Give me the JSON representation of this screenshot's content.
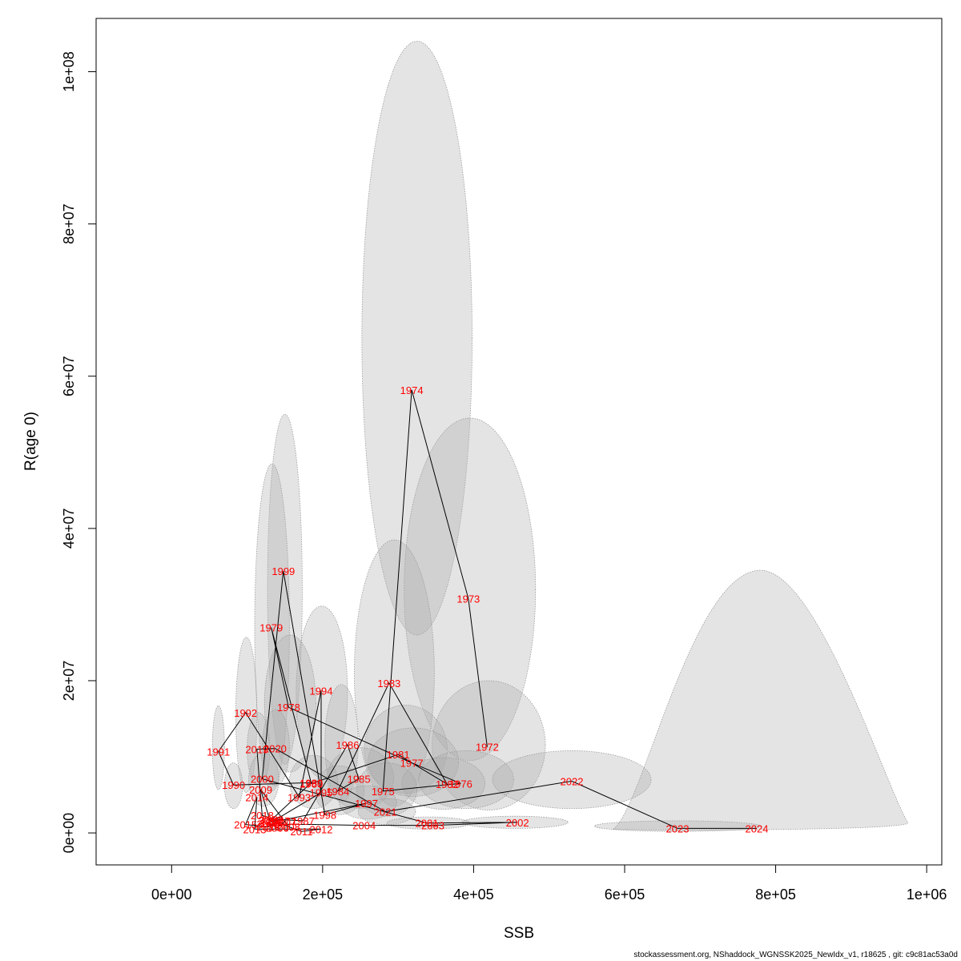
{
  "chart_data": {
    "type": "scatter",
    "xlabel": "SSB",
    "ylabel": "R(age 0)",
    "xlim": [
      -100000,
      1020000
    ],
    "ylim": [
      -4200000,
      107000000
    ],
    "x_ticks": [
      {
        "value": 0,
        "label": "0e+00"
      },
      {
        "value": 200000,
        "label": "2e+05"
      },
      {
        "value": 400000,
        "label": "4e+05"
      },
      {
        "value": 600000,
        "label": "6e+05"
      },
      {
        "value": 800000,
        "label": "8e+05"
      },
      {
        "value": 1000000,
        "label": "1e+06"
      }
    ],
    "y_ticks": [
      {
        "value": 0,
        "label": "0e+00"
      },
      {
        "value": 20000000,
        "label": "2e+07"
      },
      {
        "value": 40000000,
        "label": "4e+07"
      },
      {
        "value": 60000000,
        "label": "6e+07"
      },
      {
        "value": 80000000,
        "label": "8e+07"
      },
      {
        "value": 100000000,
        "label": "1e+08"
      }
    ],
    "points": [
      {
        "year": "1972",
        "ssb": 418000,
        "r": 11300000
      },
      {
        "year": "1973",
        "ssb": 393000,
        "r": 30800000
      },
      {
        "year": "1974",
        "ssb": 318000,
        "r": 58200000
      },
      {
        "year": "1975",
        "ssb": 280000,
        "r": 5500000
      },
      {
        "year": "1976",
        "ssb": 383000,
        "r": 6500000
      },
      {
        "year": "1977",
        "ssb": 318000,
        "r": 9200000
      },
      {
        "year": "1978",
        "ssb": 155000,
        "r": 16500000
      },
      {
        "year": "1979",
        "ssb": 132000,
        "r": 27000000
      },
      {
        "year": "1980",
        "ssb": 185000,
        "r": 6500000
      },
      {
        "year": "1981",
        "ssb": 300000,
        "r": 10300000
      },
      {
        "year": "1982",
        "ssb": 365000,
        "r": 6400000
      },
      {
        "year": "1983",
        "ssb": 288000,
        "r": 19700000
      },
      {
        "year": "1984",
        "ssb": 220000,
        "r": 5500000
      },
      {
        "year": "1985",
        "ssb": 248000,
        "r": 7100000
      },
      {
        "year": "1986",
        "ssb": 233000,
        "r": 11600000
      },
      {
        "year": "1987",
        "ssb": 174000,
        "r": 1600000
      },
      {
        "year": "1988",
        "ssb": 133000,
        "r": 1800000
      },
      {
        "year": "1989",
        "ssb": 185000,
        "r": 6600000
      },
      {
        "year": "1990",
        "ssb": 82000,
        "r": 6300000
      },
      {
        "year": "1991",
        "ssb": 62000,
        "r": 10700000
      },
      {
        "year": "1992",
        "ssb": 98000,
        "r": 15800000
      },
      {
        "year": "1993",
        "ssb": 169000,
        "r": 4700000
      },
      {
        "year": "1994",
        "ssb": 198000,
        "r": 18700000
      },
      {
        "year": "1995",
        "ssb": 198000,
        "r": 5300000
      },
      {
        "year": "1996",
        "ssb": 132000,
        "r": 1400000
      },
      {
        "year": "1997",
        "ssb": 258000,
        "r": 3900000
      },
      {
        "year": "1998",
        "ssb": 203000,
        "r": 2400000
      },
      {
        "year": "1999",
        "ssb": 148000,
        "r": 34400000
      },
      {
        "year": "2000",
        "ssb": 120000,
        "r": 7100000
      },
      {
        "year": "2001",
        "ssb": 338000,
        "r": 1300000
      },
      {
        "year": "2002",
        "ssb": 458000,
        "r": 1400000
      },
      {
        "year": "2003",
        "ssb": 346000,
        "r": 1000000
      },
      {
        "year": "2004",
        "ssb": 255000,
        "r": 1000000
      },
      {
        "year": "2005",
        "ssb": 128000,
        "r": 1200000
      },
      {
        "year": "2006",
        "ssb": 140000,
        "r": 700000
      },
      {
        "year": "2007",
        "ssb": 150000,
        "r": 1500000
      },
      {
        "year": "2008",
        "ssb": 155000,
        "r": 800000
      },
      {
        "year": "2009",
        "ssb": 118000,
        "r": 5700000
      },
      {
        "year": "2010",
        "ssb": 130000,
        "r": 1700000
      },
      {
        "year": "2011",
        "ssb": 172000,
        "r": 200000
      },
      {
        "year": "2012",
        "ssb": 198000,
        "r": 500000
      },
      {
        "year": "2013",
        "ssb": 110000,
        "r": 500000
      },
      {
        "year": "2014",
        "ssb": 113000,
        "r": 4700000
      },
      {
        "year": "2015",
        "ssb": 98000,
        "r": 1100000
      },
      {
        "year": "2016",
        "ssb": 128000,
        "r": 800000
      },
      {
        "year": "2017",
        "ssb": 142000,
        "r": 1600000
      },
      {
        "year": "2018",
        "ssb": 120000,
        "r": 2300000
      },
      {
        "year": "2019",
        "ssb": 113000,
        "r": 11000000
      },
      {
        "year": "2020",
        "ssb": 137000,
        "r": 11100000
      },
      {
        "year": "2021",
        "ssb": 283000,
        "r": 2800000
      },
      {
        "year": "2022",
        "ssb": 530000,
        "r": 6800000
      },
      {
        "year": "2023",
        "ssb": 670000,
        "r": 600000
      },
      {
        "year": "2024",
        "ssb": 775000,
        "r": 600000
      }
    ],
    "confidence_regions": [
      {
        "year": "1974",
        "x_center": 325000,
        "y_center": 65000000,
        "x_halfwidth": 73000,
        "y_halfheight": 39000000
      },
      {
        "year": "1973",
        "x_center": 395000,
        "y_center": 32000000,
        "x_halfwidth": 87000,
        "y_halfheight": 22500000
      },
      {
        "year": "1983",
        "x_center": 295000,
        "y_center": 21000000,
        "x_halfwidth": 53000,
        "y_halfheight": 17500000
      },
      {
        "year": "1972",
        "x_center": 420000,
        "y_center": 11500000,
        "x_halfwidth": 75000,
        "y_halfheight": 8500000
      },
      {
        "year": "1999",
        "x_center": 150000,
        "y_center": 32000000,
        "x_halfwidth": 23000,
        "y_halfheight": 23000000
      },
      {
        "year": "1979",
        "x_center": 133000,
        "y_center": 27000000,
        "x_halfwidth": 23000,
        "y_halfheight": 21500000
      },
      {
        "year": "1994",
        "x_center": 199000,
        "y_center": 18500000,
        "x_halfwidth": 34000,
        "y_halfheight": 11300000
      },
      {
        "year": "1978",
        "x_center": 157000,
        "y_center": 17000000,
        "x_halfwidth": 34000,
        "y_halfheight": 9000000
      },
      {
        "year": "1992",
        "x_center": 99000,
        "y_center": 15500000,
        "x_halfwidth": 14000,
        "y_halfheight": 10200000
      },
      {
        "year": "1991",
        "x_center": 62000,
        "y_center": 11200000,
        "x_halfwidth": 8000,
        "y_halfheight": 5500000
      },
      {
        "year": "1986",
        "x_center": 225000,
        "y_center": 11800000,
        "x_halfwidth": 22000,
        "y_halfheight": 7700000
      },
      {
        "year": "1981",
        "x_center": 310000,
        "y_center": 11000000,
        "x_halfwidth": 55000,
        "y_halfheight": 5800000
      },
      {
        "year": "1977",
        "x_center": 320000,
        "y_center": 9300000,
        "x_halfwidth": 60000,
        "y_halfheight": 4500000
      },
      {
        "year": "1976",
        "x_center": 390000,
        "y_center": 7000000,
        "x_halfwidth": 63000,
        "y_halfheight": 3800000
      },
      {
        "year": "2022",
        "x_center": 530000,
        "y_center": 7000000,
        "x_halfwidth": 105000,
        "y_halfheight": 3800000
      },
      {
        "year": "1982",
        "x_center": 360000,
        "y_center": 6500000,
        "x_halfwidth": 55000,
        "y_halfheight": 3400000
      },
      {
        "year": "1985",
        "x_center": 250000,
        "y_center": 7200000,
        "x_halfwidth": 44000,
        "y_halfheight": 4000000
      },
      {
        "year": "1975",
        "x_center": 285000,
        "y_center": 5700000,
        "x_halfwidth": 40000,
        "y_halfheight": 3500000
      },
      {
        "year": "1984",
        "x_center": 222000,
        "y_center": 5600000,
        "x_halfwidth": 33000,
        "y_halfheight": 3200000
      },
      {
        "year": "1980",
        "x_center": 188000,
        "y_center": 6700000,
        "x_halfwidth": 32000,
        "y_halfheight": 3500000
      },
      {
        "year": "2020",
        "x_center": 138000,
        "y_center": 11200000,
        "x_halfwidth": 18000,
        "y_halfheight": 5000000
      },
      {
        "year": "2019",
        "x_center": 115000,
        "y_center": 11000000,
        "x_halfwidth": 15000,
        "y_halfheight": 4800000
      },
      {
        "year": "1990",
        "x_center": 82000,
        "y_center": 6200000,
        "x_halfwidth": 12000,
        "y_halfheight": 3000000
      },
      {
        "year": "2000",
        "x_center": 122000,
        "y_center": 7000000,
        "x_halfwidth": 20000,
        "y_halfheight": 3500000
      },
      {
        "year": "1997",
        "x_center": 260000,
        "y_center": 4000000,
        "x_halfwidth": 38000,
        "y_halfheight": 2200000
      },
      {
        "year": "2021",
        "x_center": 285000,
        "y_center": 2800000,
        "x_halfwidth": 38000,
        "y_halfheight": 1700000
      },
      {
        "year": "2002",
        "x_center": 455000,
        "y_center": 1400000,
        "x_halfwidth": 70000,
        "y_halfheight": 800000
      },
      {
        "year": "2001",
        "x_center": 340000,
        "y_center": 1300000,
        "x_halfwidth": 55000,
        "y_halfheight": 800000
      },
      {
        "year": "2023",
        "x_center": 670000,
        "y_center": 900000,
        "x_halfwidth": 110000,
        "y_halfheight": 700000
      },
      {
        "year": "2024",
        "x_center": 780000,
        "y_center": 17500000,
        "x_halfwidth": 195000,
        "y_halfheight": 17000000,
        "skewed": true
      }
    ]
  },
  "footer_text": "stockassessment.org, NShaddock_WGNSSK2025_NewIdx_v1, r18625 , git: c9c81ac53a0d"
}
